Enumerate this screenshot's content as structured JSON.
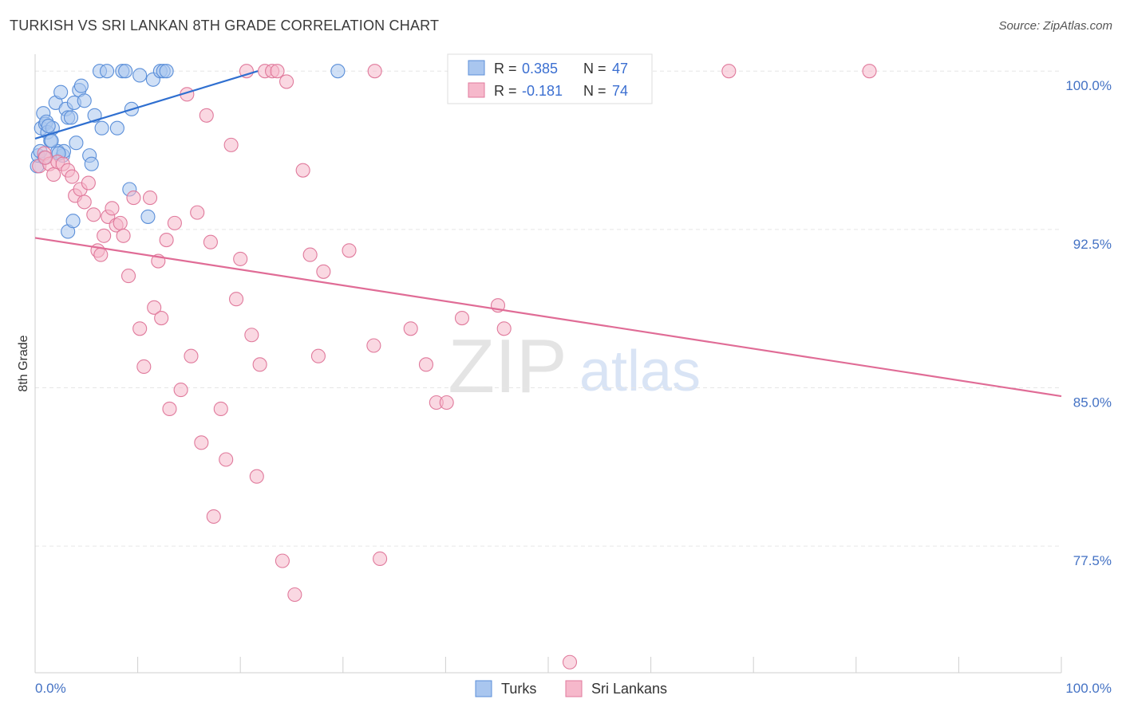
{
  "chart_data": {
    "type": "scatter",
    "title": "TURKISH VS SRI LANKAN 8TH GRADE CORRELATION CHART",
    "source": "Source: ZipAtlas.com",
    "xlabel": "",
    "ylabel": "8th Grade",
    "xlim": [
      0,
      100
    ],
    "ylim": [
      71.5,
      100.8
    ],
    "x_tick_labels": [
      "0.0%",
      "100.0%"
    ],
    "y_ticks": [
      {
        "value": 100.0,
        "label": "100.0%"
      },
      {
        "value": 92.5,
        "label": "92.5%"
      },
      {
        "value": 85.0,
        "label": "85.0%"
      },
      {
        "value": 77.5,
        "label": "77.5%"
      }
    ],
    "watermark": {
      "part1": "ZIP",
      "part2": "atlas"
    },
    "legend": [
      {
        "r_label": "R =",
        "r_value": "0.385",
        "n_label": "N =",
        "n_value": "47",
        "color": "#a9c6ef"
      },
      {
        "r_label": "R =",
        "r_value": "-0.181",
        "n_label": "N =",
        "n_value": "74",
        "color": "#f6b8cb"
      }
    ],
    "series": [
      {
        "name": "Turks",
        "color": "#a9c6ef",
        "stroke": "#5b8fd9",
        "line_color": "#2f6fd0",
        "trend": {
          "x": [
            0,
            21.7
          ],
          "y": [
            96.8,
            100.0
          ]
        },
        "points": [
          {
            "x": 0.2,
            "y": 95.5
          },
          {
            "x": 0.3,
            "y": 96.0
          },
          {
            "x": 0.5,
            "y": 96.2
          },
          {
            "x": 0.6,
            "y": 97.3
          },
          {
            "x": 0.8,
            "y": 98.0
          },
          {
            "x": 1.0,
            "y": 97.5
          },
          {
            "x": 1.1,
            "y": 97.6
          },
          {
            "x": 1.2,
            "y": 97.1
          },
          {
            "x": 1.5,
            "y": 96.7
          },
          {
            "x": 1.7,
            "y": 97.3
          },
          {
            "x": 2.0,
            "y": 98.5
          },
          {
            "x": 2.2,
            "y": 96.2
          },
          {
            "x": 2.5,
            "y": 99.0
          },
          {
            "x": 2.7,
            "y": 96.0
          },
          {
            "x": 3.0,
            "y": 98.2
          },
          {
            "x": 3.2,
            "y": 97.8
          },
          {
            "x": 3.5,
            "y": 97.8
          },
          {
            "x": 3.8,
            "y": 98.5
          },
          {
            "x": 4.0,
            "y": 96.6
          },
          {
            "x": 4.3,
            "y": 99.1
          },
          {
            "x": 4.5,
            "y": 99.3
          },
          {
            "x": 4.8,
            "y": 98.6
          },
          {
            "x": 5.3,
            "y": 96.0
          },
          {
            "x": 5.5,
            "y": 95.6
          },
          {
            "x": 5.8,
            "y": 97.9
          },
          {
            "x": 6.3,
            "y": 100.0
          },
          {
            "x": 7.0,
            "y": 100.0
          },
          {
            "x": 6.5,
            "y": 97.3
          },
          {
            "x": 8.0,
            "y": 97.3
          },
          {
            "x": 8.5,
            "y": 100.0
          },
          {
            "x": 8.8,
            "y": 100.0
          },
          {
            "x": 9.4,
            "y": 98.2
          },
          {
            "x": 9.2,
            "y": 94.4
          },
          {
            "x": 10.2,
            "y": 99.8
          },
          {
            "x": 11.0,
            "y": 93.1
          },
          {
            "x": 11.5,
            "y": 99.6
          },
          {
            "x": 12.2,
            "y": 100.0
          },
          {
            "x": 12.5,
            "y": 100.0
          },
          {
            "x": 12.8,
            "y": 100.0
          },
          {
            "x": 3.2,
            "y": 92.4
          },
          {
            "x": 3.7,
            "y": 92.9
          },
          {
            "x": 1.3,
            "y": 97.4
          },
          {
            "x": 2.8,
            "y": 96.2
          },
          {
            "x": 29.5,
            "y": 100.0
          },
          {
            "x": 1.6,
            "y": 96.7
          },
          {
            "x": 0.9,
            "y": 95.9
          },
          {
            "x": 2.3,
            "y": 96.1
          }
        ]
      },
      {
        "name": "Sri Lankans",
        "color": "#f6b8cb",
        "stroke": "#e07a9c",
        "line_color": "#e06c96",
        "trend": {
          "x": [
            0,
            100
          ],
          "y": [
            92.1,
            84.6
          ]
        },
        "points": [
          {
            "x": 0.4,
            "y": 95.5
          },
          {
            "x": 0.9,
            "y": 96.1
          },
          {
            "x": 1.4,
            "y": 95.6
          },
          {
            "x": 1.8,
            "y": 95.1
          },
          {
            "x": 2.2,
            "y": 95.7
          },
          {
            "x": 2.7,
            "y": 95.6
          },
          {
            "x": 3.2,
            "y": 95.3
          },
          {
            "x": 3.6,
            "y": 95.0
          },
          {
            "x": 3.9,
            "y": 94.1
          },
          {
            "x": 4.4,
            "y": 94.4
          },
          {
            "x": 4.8,
            "y": 93.8
          },
          {
            "x": 5.2,
            "y": 94.7
          },
          {
            "x": 5.7,
            "y": 93.2
          },
          {
            "x": 6.1,
            "y": 91.5
          },
          {
            "x": 6.4,
            "y": 91.3
          },
          {
            "x": 6.7,
            "y": 92.2
          },
          {
            "x": 7.1,
            "y": 93.1
          },
          {
            "x": 7.5,
            "y": 93.5
          },
          {
            "x": 7.9,
            "y": 92.7
          },
          {
            "x": 8.3,
            "y": 92.8
          },
          {
            "x": 8.6,
            "y": 92.2
          },
          {
            "x": 9.1,
            "y": 90.3
          },
          {
            "x": 9.6,
            "y": 94.0
          },
          {
            "x": 10.2,
            "y": 87.8
          },
          {
            "x": 10.6,
            "y": 86.0
          },
          {
            "x": 11.2,
            "y": 94.0
          },
          {
            "x": 11.6,
            "y": 88.8
          },
          {
            "x": 12.0,
            "y": 91.0
          },
          {
            "x": 12.3,
            "y": 88.3
          },
          {
            "x": 12.8,
            "y": 92.0
          },
          {
            "x": 13.1,
            "y": 84.0
          },
          {
            "x": 13.6,
            "y": 92.8
          },
          {
            "x": 14.2,
            "y": 84.9
          },
          {
            "x": 14.8,
            "y": 98.9
          },
          {
            "x": 15.2,
            "y": 86.5
          },
          {
            "x": 15.8,
            "y": 93.3
          },
          {
            "x": 16.2,
            "y": 82.4
          },
          {
            "x": 16.7,
            "y": 97.9
          },
          {
            "x": 17.1,
            "y": 91.9
          },
          {
            "x": 17.4,
            "y": 78.9
          },
          {
            "x": 18.1,
            "y": 84.0
          },
          {
            "x": 18.6,
            "y": 81.6
          },
          {
            "x": 19.1,
            "y": 96.5
          },
          {
            "x": 19.6,
            "y": 89.2
          },
          {
            "x": 20.0,
            "y": 91.1
          },
          {
            "x": 20.6,
            "y": 100.0
          },
          {
            "x": 21.1,
            "y": 87.5
          },
          {
            "x": 21.6,
            "y": 80.8
          },
          {
            "x": 21.9,
            "y": 86.1
          },
          {
            "x": 22.4,
            "y": 100.0
          },
          {
            "x": 23.1,
            "y": 100.0
          },
          {
            "x": 23.6,
            "y": 100.0
          },
          {
            "x": 24.1,
            "y": 76.8
          },
          {
            "x": 24.5,
            "y": 99.5
          },
          {
            "x": 25.3,
            "y": 75.2
          },
          {
            "x": 26.1,
            "y": 95.3
          },
          {
            "x": 26.8,
            "y": 91.3
          },
          {
            "x": 27.6,
            "y": 86.5
          },
          {
            "x": 28.1,
            "y": 90.5
          },
          {
            "x": 30.6,
            "y": 91.5
          },
          {
            "x": 33.0,
            "y": 87.0
          },
          {
            "x": 33.6,
            "y": 76.9
          },
          {
            "x": 33.1,
            "y": 100.0
          },
          {
            "x": 36.6,
            "y": 87.8
          },
          {
            "x": 38.1,
            "y": 86.1
          },
          {
            "x": 39.1,
            "y": 84.3
          },
          {
            "x": 40.1,
            "y": 84.3
          },
          {
            "x": 41.6,
            "y": 88.3
          },
          {
            "x": 45.1,
            "y": 88.9
          },
          {
            "x": 45.7,
            "y": 87.8
          },
          {
            "x": 52.1,
            "y": 72.0
          },
          {
            "x": 67.6,
            "y": 100.0
          },
          {
            "x": 81.3,
            "y": 100.0
          },
          {
            "x": 1.0,
            "y": 95.9
          }
        ]
      }
    ]
  }
}
